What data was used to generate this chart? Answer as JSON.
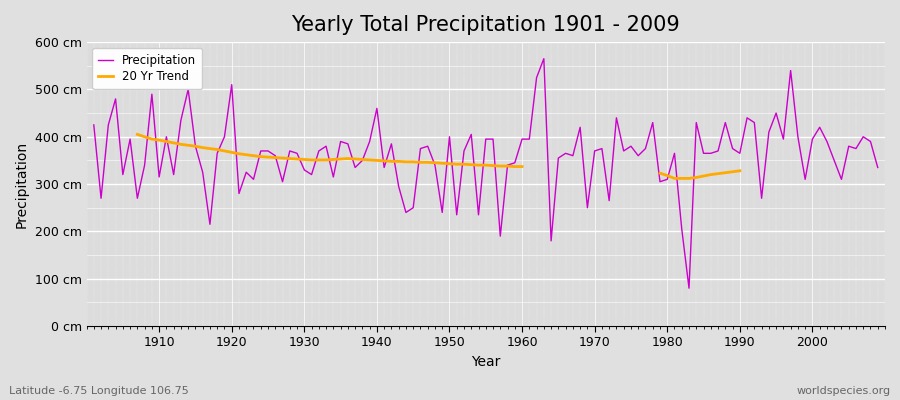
{
  "title": "Yearly Total Precipitation 1901 - 2009",
  "xlabel": "Year",
  "ylabel": "Precipitation",
  "subtitle": "Latitude -6.75 Longitude 106.75",
  "watermark": "worldspecies.org",
  "years": [
    1901,
    1902,
    1903,
    1904,
    1905,
    1906,
    1907,
    1908,
    1909,
    1910,
    1911,
    1912,
    1913,
    1914,
    1915,
    1916,
    1917,
    1918,
    1919,
    1920,
    1921,
    1922,
    1923,
    1924,
    1925,
    1926,
    1927,
    1928,
    1929,
    1930,
    1931,
    1932,
    1933,
    1934,
    1935,
    1936,
    1937,
    1938,
    1939,
    1940,
    1941,
    1942,
    1943,
    1944,
    1945,
    1946,
    1947,
    1948,
    1949,
    1950,
    1951,
    1952,
    1953,
    1954,
    1955,
    1956,
    1957,
    1958,
    1959,
    1960,
    1961,
    1962,
    1963,
    1964,
    1965,
    1966,
    1967,
    1968,
    1969,
    1970,
    1971,
    1972,
    1973,
    1974,
    1975,
    1976,
    1977,
    1978,
    1979,
    1980,
    1981,
    1982,
    1983,
    1984,
    1985,
    1986,
    1987,
    1988,
    1989,
    1990,
    1991,
    1992,
    1993,
    1994,
    1995,
    1996,
    1997,
    1998,
    1999,
    2000,
    2001,
    2002,
    2003,
    2004,
    2005,
    2006,
    2007,
    2008,
    2009
  ],
  "precipitation": [
    425,
    270,
    425,
    480,
    320,
    395,
    270,
    340,
    490,
    315,
    400,
    320,
    435,
    500,
    380,
    325,
    215,
    365,
    400,
    510,
    280,
    325,
    310,
    370,
    370,
    360,
    305,
    370,
    365,
    330,
    320,
    370,
    380,
    315,
    390,
    385,
    335,
    350,
    390,
    460,
    335,
    385,
    295,
    240,
    250,
    375,
    380,
    340,
    240,
    400,
    235,
    370,
    405,
    235,
    395,
    395,
    190,
    340,
    345,
    395,
    395,
    525,
    565,
    180,
    355,
    365,
    360,
    420,
    250,
    370,
    375,
    265,
    440,
    370,
    380,
    360,
    375,
    430,
    305,
    310,
    365,
    205,
    80,
    430,
    365,
    365,
    370,
    430,
    375,
    365,
    440,
    430,
    270,
    410,
    450,
    395,
    540,
    400,
    310,
    395,
    420,
    390,
    350,
    310,
    380,
    375,
    400,
    390,
    335
  ],
  "trend_segment1_years": [
    1907,
    1908,
    1909,
    1910,
    1911,
    1912,
    1913,
    1914,
    1915,
    1916,
    1917,
    1918,
    1919,
    1920,
    1921,
    1922,
    1923,
    1924,
    1925,
    1926,
    1927,
    1928,
    1929,
    1930,
    1931,
    1932,
    1933,
    1934,
    1935,
    1936,
    1937,
    1938,
    1939,
    1940,
    1941,
    1942,
    1943,
    1944,
    1945,
    1946,
    1947,
    1948,
    1949,
    1950,
    1951,
    1952,
    1953,
    1954,
    1955,
    1956,
    1957,
    1958,
    1959,
    1960
  ],
  "trend_segment1_values": [
    405,
    400,
    395,
    393,
    390,
    387,
    384,
    382,
    380,
    377,
    375,
    373,
    370,
    367,
    364,
    362,
    360,
    358,
    357,
    356,
    355,
    354,
    353,
    352,
    351,
    351,
    351,
    352,
    353,
    354,
    353,
    352,
    351,
    350,
    349,
    348,
    348,
    347,
    347,
    346,
    346,
    345,
    344,
    343,
    342,
    342,
    341,
    340,
    340,
    339,
    338,
    338,
    337,
    337
  ],
  "trend_segment2_years": [
    1979,
    1980,
    1981,
    1982,
    1983,
    1984,
    1985,
    1986,
    1987,
    1988,
    1989,
    1990
  ],
  "trend_segment2_values": [
    323,
    318,
    312,
    312,
    312,
    314,
    317,
    320,
    322,
    324,
    326,
    328
  ],
  "precip_color": "#cc00cc",
  "trend_color": "#ffaa00",
  "bg_color": "#e0e0e0",
  "plot_bg_color": "#dcdcdc",
  "ylim": [
    0,
    600
  ],
  "xlim": [
    1900,
    2010
  ],
  "ytick_step": 100,
  "title_fontsize": 15,
  "axis_label_fontsize": 10,
  "tick_fontsize": 9
}
